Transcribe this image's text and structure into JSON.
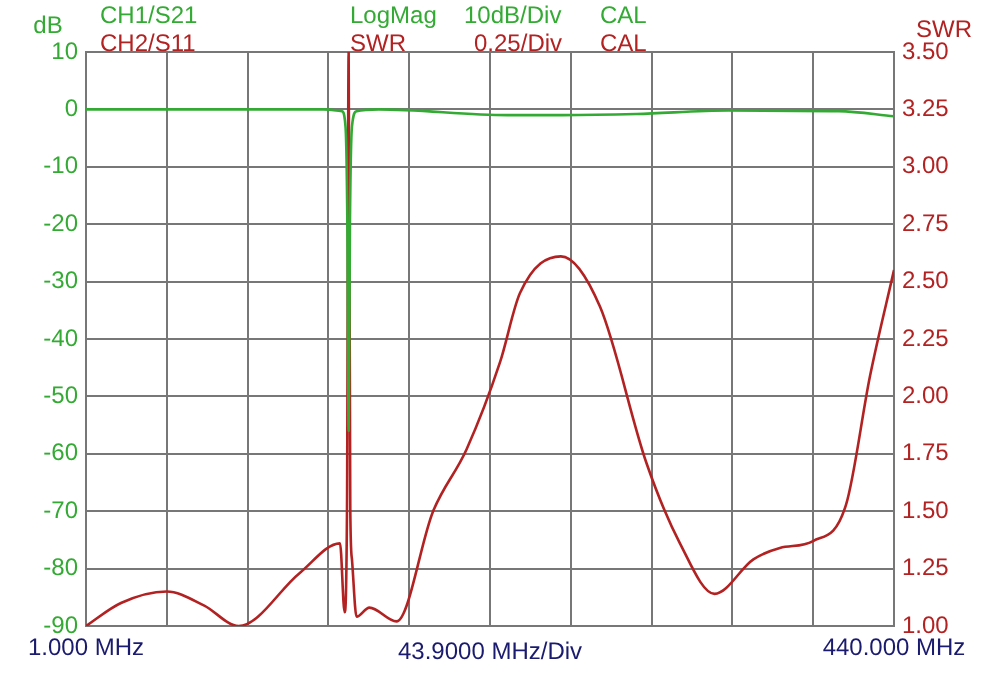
{
  "chart_data": {
    "type": "line",
    "ylabel": "dB",
    "y2label": "SWR",
    "annotations": [
      "CH1/S21",
      "LogMag",
      "10dB/Div",
      "CAL",
      "CH2/S11",
      "SWR",
      "0.25/Div",
      "CAL"
    ],
    "xlabel": "43.9000 MHz/Div",
    "xlim": [
      1,
      440
    ],
    "xticks": [
      {
        "value": 1,
        "label": "1.000 MHz"
      },
      {
        "value": 44.9,
        "label": null
      },
      {
        "value": 88.8,
        "label": null
      },
      {
        "value": 132.7,
        "label": null
      },
      {
        "value": 176.6,
        "label": null
      },
      {
        "value": 220.5,
        "label": null
      },
      {
        "value": 264.4,
        "label": null
      },
      {
        "value": 308.3,
        "label": null
      },
      {
        "value": 352.2,
        "label": null
      },
      {
        "value": 396.1,
        "label": null
      },
      {
        "value": 440,
        "label": "440.000 MHz"
      }
    ],
    "ylim": [
      -90,
      10
    ],
    "yticks": [
      -90,
      -80,
      -70,
      -60,
      -50,
      -40,
      -30,
      -20,
      -10,
      0,
      10
    ],
    "y2lim": [
      1,
      3.5
    ],
    "y2ticks": [
      {
        "value": 1,
        "label": "1.00"
      },
      {
        "value": 1.25,
        "label": "1.25"
      },
      {
        "value": 1.5,
        "label": "1.50"
      },
      {
        "value": 1.75,
        "label": "1.75"
      },
      {
        "value": 2,
        "label": "2.00"
      },
      {
        "value": 2.25,
        "label": "2.25"
      },
      {
        "value": 2.5,
        "label": "2.50"
      },
      {
        "value": 2.75,
        "label": "2.75"
      },
      {
        "value": 3,
        "label": "3.00"
      },
      {
        "value": 3.25,
        "label": "3.25"
      },
      {
        "value": 3.5,
        "label": "3.50"
      }
    ],
    "grid": true,
    "legend": false,
    "marker": "none",
    "line_style": "solid",
    "series": [
      {
        "color": "#33aa33",
        "x": [
          1,
          130,
          140,
          142,
          143,
          143.7,
          144.4,
          145.5,
          148,
          160,
          230,
          260,
          300,
          350,
          410,
          440
        ],
        "values": [
          0,
          0,
          -0.3,
          -3,
          -20,
          -56,
          -20,
          -3,
          -0.3,
          0,
          -1,
          -1,
          -0.8,
          -0.2,
          -0.3,
          -1.2
        ]
      },
      {
        "color": "#b22222",
        "axis": "y2",
        "x": [
          1,
          20,
          44.8,
          65,
          83.9,
          117,
          139,
          141.5,
          142.8,
          143.7,
          144.6,
          145.5,
          148,
          155,
          169.7,
          189.6,
          207.8,
          226,
          236.8,
          259,
          280.3,
          305.5,
          323.7,
          342.5,
          363.6,
          378,
          396,
          414,
          427,
          440
        ],
        "values": [
          1,
          1.1,
          1.15,
          1.09,
          1,
          1.23,
          1.36,
          1.06,
          1.5,
          3.5,
          1.5,
          1.29,
          1.04,
          1.08,
          1.02,
          1.5,
          1.77,
          2.15,
          2.45,
          2.61,
          2.39,
          1.71,
          1.36,
          1.14,
          1.29,
          1.34,
          1.37,
          1.53,
          2.09,
          2.55
        ]
      }
    ]
  }
}
